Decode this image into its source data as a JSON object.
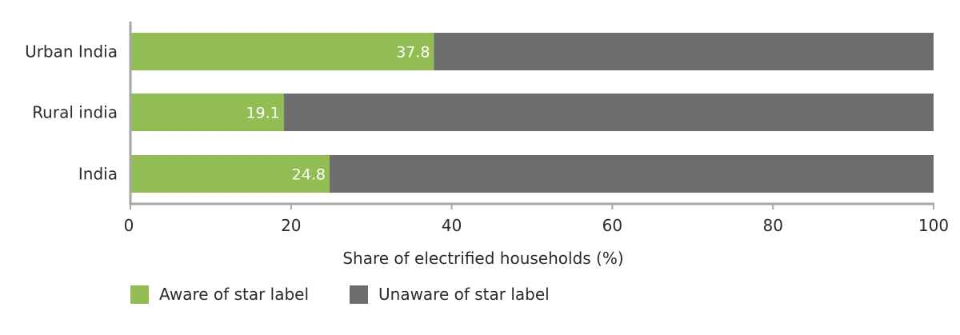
{
  "chart_data": {
    "type": "bar",
    "orientation": "horizontal",
    "stacked": true,
    "categories": [
      "Urban India",
      "Rural india",
      "India"
    ],
    "series": [
      {
        "name": "Aware of star label",
        "values": [
          37.8,
          19.1,
          24.8
        ],
        "color": "#92bd52"
      },
      {
        "name": "Unaware of star label",
        "values": [
          62.2,
          80.9,
          75.2
        ],
        "color": "#6d6d70"
      }
    ],
    "data_labels": [
      "37.8",
      "19.1",
      "24.8"
    ],
    "xlabel": "Share of electrified households (%)",
    "ylabel": "",
    "xlim": [
      0,
      100
    ],
    "xticks": [
      0,
      20,
      40,
      60,
      80,
      100
    ],
    "tick_labels": [
      "0",
      "20",
      "40",
      "60",
      "80",
      "100"
    ],
    "grid": false,
    "legend_position": "bottom-left"
  },
  "colors": {
    "axis": "#a6a6a6",
    "text": "#2b2b2b"
  }
}
